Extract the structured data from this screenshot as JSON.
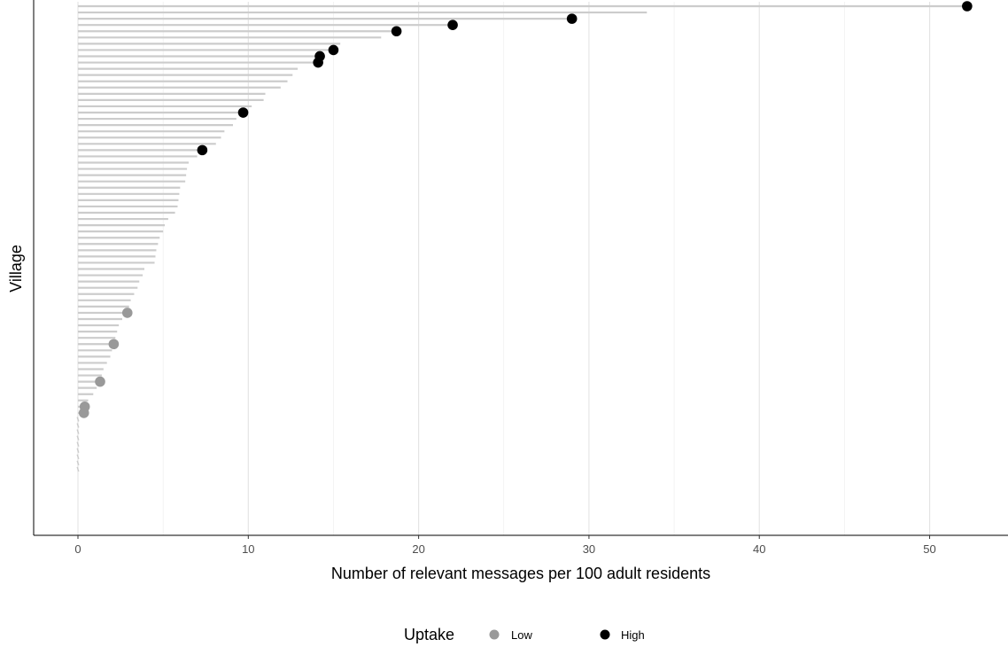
{
  "chart_data": {
    "type": "lollipop",
    "orientation": "horizontal",
    "xlabel": "Number of relevant messages per 100 adult residents",
    "ylabel": "Village",
    "xlim": [
      -2.6,
      54.6
    ],
    "x_ticks": [
      0,
      10,
      20,
      30,
      40,
      50
    ],
    "x_tick_labels": [
      "0",
      "10",
      "20",
      "30",
      "40",
      "50"
    ],
    "x_minor_gridlines": [
      5,
      15,
      25,
      35,
      45
    ],
    "grid": true,
    "y_tick_labels_shown": false,
    "legend": {
      "title": "Uptake",
      "position": "bottom",
      "entries": [
        {
          "label": "Low",
          "color": "#999999"
        },
        {
          "label": "High",
          "color": "#000000"
        }
      ]
    },
    "segment_color": "#cccccc",
    "highlight_note": "dots drawn only for villages with a recorded uptake level",
    "villages": [
      {
        "value": 52.2,
        "uptake": "High"
      },
      {
        "value": 33.4,
        "uptake": null
      },
      {
        "value": 29.0,
        "uptake": "High"
      },
      {
        "value": 22.0,
        "uptake": "High"
      },
      {
        "value": 18.7,
        "uptake": "High"
      },
      {
        "value": 17.8,
        "uptake": null
      },
      {
        "value": 15.4,
        "uptake": null
      },
      {
        "value": 15.0,
        "uptake": "High"
      },
      {
        "value": 14.2,
        "uptake": "High"
      },
      {
        "value": 14.1,
        "uptake": "High"
      },
      {
        "value": 12.9,
        "uptake": null
      },
      {
        "value": 12.6,
        "uptake": null
      },
      {
        "value": 12.3,
        "uptake": null
      },
      {
        "value": 11.9,
        "uptake": null
      },
      {
        "value": 11.0,
        "uptake": null
      },
      {
        "value": 10.9,
        "uptake": null
      },
      {
        "value": 10.2,
        "uptake": null
      },
      {
        "value": 9.7,
        "uptake": "High"
      },
      {
        "value": 9.3,
        "uptake": null
      },
      {
        "value": 9.1,
        "uptake": null
      },
      {
        "value": 8.6,
        "uptake": null
      },
      {
        "value": 8.4,
        "uptake": null
      },
      {
        "value": 8.1,
        "uptake": null
      },
      {
        "value": 7.3,
        "uptake": "High"
      },
      {
        "value": 7.0,
        "uptake": null
      },
      {
        "value": 6.5,
        "uptake": null
      },
      {
        "value": 6.4,
        "uptake": null
      },
      {
        "value": 6.35,
        "uptake": null
      },
      {
        "value": 6.3,
        "uptake": null
      },
      {
        "value": 6.0,
        "uptake": null
      },
      {
        "value": 5.95,
        "uptake": null
      },
      {
        "value": 5.9,
        "uptake": null
      },
      {
        "value": 5.85,
        "uptake": null
      },
      {
        "value": 5.7,
        "uptake": null
      },
      {
        "value": 5.3,
        "uptake": null
      },
      {
        "value": 5.1,
        "uptake": null
      },
      {
        "value": 5.0,
        "uptake": null
      },
      {
        "value": 4.8,
        "uptake": null
      },
      {
        "value": 4.7,
        "uptake": null
      },
      {
        "value": 4.6,
        "uptake": null
      },
      {
        "value": 4.55,
        "uptake": null
      },
      {
        "value": 4.5,
        "uptake": null
      },
      {
        "value": 3.9,
        "uptake": null
      },
      {
        "value": 3.8,
        "uptake": null
      },
      {
        "value": 3.6,
        "uptake": null
      },
      {
        "value": 3.5,
        "uptake": null
      },
      {
        "value": 3.3,
        "uptake": null
      },
      {
        "value": 3.1,
        "uptake": null
      },
      {
        "value": 3.0,
        "uptake": null
      },
      {
        "value": 2.9,
        "uptake": "Low"
      },
      {
        "value": 2.6,
        "uptake": null
      },
      {
        "value": 2.4,
        "uptake": null
      },
      {
        "value": 2.3,
        "uptake": null
      },
      {
        "value": 2.2,
        "uptake": null
      },
      {
        "value": 2.1,
        "uptake": "Low"
      },
      {
        "value": 2.0,
        "uptake": null
      },
      {
        "value": 1.9,
        "uptake": null
      },
      {
        "value": 1.7,
        "uptake": null
      },
      {
        "value": 1.5,
        "uptake": null
      },
      {
        "value": 1.4,
        "uptake": null
      },
      {
        "value": 1.3,
        "uptake": "Low"
      },
      {
        "value": 1.1,
        "uptake": null
      },
      {
        "value": 0.9,
        "uptake": null
      },
      {
        "value": 0.6,
        "uptake": null
      },
      {
        "value": 0.4,
        "uptake": "Low"
      },
      {
        "value": 0.35,
        "uptake": "Low"
      },
      {
        "value": 0.0,
        "uptake": null
      },
      {
        "value": 0.0,
        "uptake": null
      },
      {
        "value": 0.0,
        "uptake": null
      },
      {
        "value": 0.0,
        "uptake": null
      },
      {
        "value": 0.0,
        "uptake": null
      },
      {
        "value": 0.0,
        "uptake": null
      },
      {
        "value": 0.0,
        "uptake": null
      },
      {
        "value": 0.0,
        "uptake": null
      },
      {
        "value": 0.0,
        "uptake": null
      }
    ]
  }
}
